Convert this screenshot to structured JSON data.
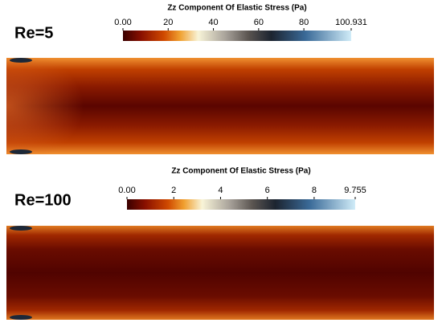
{
  "chart_data": [
    {
      "type": "contour",
      "annotation": "Re=5",
      "title": "Zz Component Of Elastic Stress (Pa)",
      "clim": [
        0,
        100.931
      ],
      "cticks": [
        {
          "value": 0,
          "label": "0.00"
        },
        20,
        40,
        60,
        80,
        100.931
      ]
    },
    {
      "type": "contour",
      "annotation": "Re=100",
      "title": "Zz Component Of Elastic Stress (Pa)",
      "clim": [
        0,
        9.755
      ],
      "cticks": [
        {
          "value": 0,
          "label": "0.00"
        },
        2,
        4,
        6,
        8,
        9.755
      ]
    }
  ]
}
